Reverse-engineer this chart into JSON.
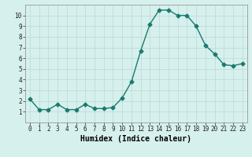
{
  "x": [
    0,
    1,
    2,
    3,
    4,
    5,
    6,
    7,
    8,
    9,
    10,
    11,
    12,
    13,
    14,
    15,
    16,
    17,
    18,
    19,
    20,
    21,
    22,
    23
  ],
  "y": [
    2.2,
    1.2,
    1.2,
    1.7,
    1.2,
    1.2,
    1.7,
    1.3,
    1.3,
    1.4,
    2.3,
    3.8,
    6.7,
    9.2,
    10.5,
    10.5,
    10.0,
    10.0,
    9.0,
    7.2,
    6.4,
    5.4,
    5.3,
    5.5
  ],
  "xlabel": "Humidex (Indice chaleur)",
  "ylim": [
    0,
    11
  ],
  "xlim": [
    -0.5,
    23.5
  ],
  "yticks": [
    1,
    2,
    3,
    4,
    5,
    6,
    7,
    8,
    9,
    10
  ],
  "xticks": [
    0,
    1,
    2,
    3,
    4,
    5,
    6,
    7,
    8,
    9,
    10,
    11,
    12,
    13,
    14,
    15,
    16,
    17,
    18,
    19,
    20,
    21,
    22,
    23
  ],
  "line_color": "#1a7a6e",
  "bg_color": "#d6f0ed",
  "grid_color": "#c0dbd8",
  "marker": "D",
  "marker_size": 2.5,
  "line_width": 1.0,
  "tick_fontsize": 5.5,
  "xlabel_fontsize": 7
}
